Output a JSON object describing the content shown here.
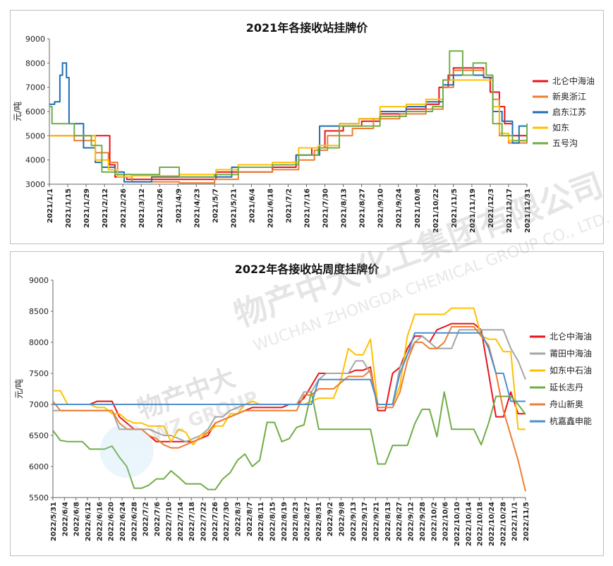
{
  "watermark": {
    "brand": "物产中大化工集团有限公司",
    "sub": "WUCHAN ZHONGDA CHEMICAL GROUP CO., LTD.",
    "logo_cn": "物产中大",
    "logo_en": "WZ GROUP"
  },
  "chart_data": [
    {
      "type": "line",
      "title": "2021年各接收站挂牌价",
      "ylabel": "元/吨",
      "ylim": [
        3000,
        9000
      ],
      "yticks": [
        3000,
        4000,
        5000,
        6000,
        7000,
        8000,
        9000
      ],
      "x_start": "2021/1/1",
      "x_end": "2021/12/31",
      "xticks": [
        "2021/1/1",
        "2021/1/15",
        "2021/1/29",
        "2021/2/12",
        "2021/2/26",
        "2021/3/12",
        "2021/3/26",
        "2021/4/9",
        "2021/4/23",
        "2021/5/7",
        "2021/5/21",
        "2021/6/4",
        "2021/6/18",
        "2021/7/2",
        "2021/7/16",
        "2021/7/30",
        "2021/8/13",
        "2021/8/27",
        "2021/9/10",
        "2021/9/24",
        "2021/10/8",
        "2021/10/22",
        "2021/11/5",
        "2021/11/19",
        "2021/12/3",
        "2021/12/17",
        "2021/12/31"
      ],
      "legend_position": "right",
      "series": [
        {
          "name": "北仑中海油",
          "color": "#e8131a",
          "x": [
            "2021/1/1",
            "2021/1/14",
            "2021/1/24",
            "2021/2/12",
            "2021/2/16",
            "2021/2/20",
            "2021/3/1",
            "2021/3/20",
            "2021/4/20",
            "2021/5/5",
            "2021/5/8",
            "2021/5/24",
            "2021/6/20",
            "2021/7/8",
            "2021/7/20",
            "2021/7/30",
            "2021/8/13",
            "2021/8/27",
            "2021/9/10",
            "2021/9/30",
            "2021/10/15",
            "2021/10/25",
            "2021/11/1",
            "2021/11/5",
            "2021/11/25",
            "2021/11/28",
            "2021/12/3",
            "2021/12/10",
            "2021/12/14",
            "2021/12/20",
            "2021/12/31"
          ],
          "y": [
            5000,
            5000,
            5000,
            5000,
            3800,
            3300,
            3200,
            3200,
            3200,
            3200,
            3500,
            3500,
            3700,
            4200,
            4500,
            5200,
            5400,
            5600,
            5900,
            6100,
            6300,
            7000,
            7500,
            7800,
            7800,
            7400,
            6800,
            6200,
            5500,
            5000,
            5500
          ]
        },
        {
          "name": "新奥浙江",
          "color": "#ee7d31",
          "x": [
            "2021/1/1",
            "2021/1/10",
            "2021/1/20",
            "2021/2/5",
            "2021/2/15",
            "2021/2/22",
            "2021/3/5",
            "2021/4/10",
            "2021/5/7",
            "2021/5/25",
            "2021/6/20",
            "2021/7/10",
            "2021/7/22",
            "2021/8/1",
            "2021/8/20",
            "2021/9/5",
            "2021/9/25",
            "2021/10/15",
            "2021/10/28",
            "2021/11/5",
            "2021/11/20",
            "2021/11/28",
            "2021/12/5",
            "2021/12/10",
            "2021/12/17",
            "2021/12/31"
          ],
          "y": [
            5000,
            5000,
            4800,
            4300,
            3900,
            3400,
            3100,
            3050,
            3200,
            3500,
            3600,
            4000,
            4400,
            5000,
            5300,
            5700,
            5900,
            6100,
            7000,
            7700,
            7700,
            7400,
            6500,
            5000,
            4700,
            5300
          ]
        },
        {
          "name": "启东江苏",
          "color": "#1f6db5",
          "x": [
            "2021/1/1",
            "2021/1/5",
            "2021/1/9",
            "2021/1/11",
            "2021/1/13",
            "2021/1/14",
            "2021/1/16",
            "2021/1/27",
            "2021/2/5",
            "2021/2/10",
            "2021/2/20",
            "2021/2/27",
            "2021/3/20",
            "2021/4/20",
            "2021/5/8",
            "2021/5/20",
            "2021/6/20",
            "2021/7/8",
            "2021/7/26",
            "2021/8/10",
            "2021/8/25",
            "2021/9/10",
            "2021/9/30",
            "2021/10/15",
            "2021/10/28",
            "2021/11/5",
            "2021/11/20",
            "2021/11/28",
            "2021/12/5",
            "2021/12/12",
            "2021/12/20",
            "2021/12/25",
            "2021/12/31"
          ],
          "y": [
            6300,
            6400,
            7500,
            8000,
            8000,
            7400,
            5500,
            4500,
            3900,
            3700,
            3500,
            3100,
            3300,
            3300,
            3300,
            3700,
            3800,
            4200,
            5400,
            5500,
            5700,
            6000,
            6200,
            6400,
            7100,
            7500,
            7500,
            7400,
            6000,
            5600,
            4700,
            5400,
            5400
          ]
        },
        {
          "name": "如东",
          "color": "#ffc000",
          "x": [
            "2021/1/1",
            "2021/1/25",
            "2021/2/5",
            "2021/2/15",
            "2021/2/22",
            "2021/3/5",
            "2021/4/10",
            "2021/5/8",
            "2021/5/25",
            "2021/6/20",
            "2021/7/10",
            "2021/7/25",
            "2021/8/10",
            "2021/8/25",
            "2021/9/10",
            "2021/9/30",
            "2021/10/15",
            "2021/10/28",
            "2021/11/8",
            "2021/11/20",
            "2021/11/28",
            "2021/12/5",
            "2021/12/10",
            "2021/12/17",
            "2021/12/31"
          ],
          "y": [
            5000,
            5000,
            4000,
            3600,
            3300,
            3350,
            3400,
            3600,
            3800,
            3900,
            4500,
            4600,
            5500,
            5700,
            6200,
            6300,
            6500,
            7300,
            7300,
            7300,
            7300,
            6200,
            5100,
            4800,
            5500
          ]
        },
        {
          "name": "五号沟",
          "color": "#70ad47",
          "x": [
            "2021/1/1",
            "2021/1/3",
            "2021/1/14",
            "2021/1/20",
            "2021/2/2",
            "2021/2/10",
            "2021/2/20",
            "2021/3/5",
            "2021/3/26",
            "2021/4/10",
            "2021/5/7",
            "2021/5/25",
            "2021/6/20",
            "2021/7/10",
            "2021/7/25",
            "2021/8/10",
            "2021/8/25",
            "2021/9/10",
            "2021/9/30",
            "2021/10/20",
            "2021/10/28",
            "2021/11/2",
            "2021/11/7",
            "2021/11/12",
            "2021/11/20",
            "2021/11/30",
            "2021/12/5",
            "2021/12/12",
            "2021/12/20",
            "2021/12/31"
          ],
          "y": [
            6200,
            5500,
            5500,
            5000,
            4600,
            3500,
            3400,
            3400,
            3700,
            3300,
            3400,
            3700,
            3800,
            4200,
            4500,
            5400,
            5400,
            5800,
            6000,
            6200,
            7300,
            8500,
            8500,
            7500,
            8000,
            7500,
            5500,
            5000,
            4800,
            5500
          ]
        }
      ]
    },
    {
      "type": "line",
      "title": "2022年各接收站周度挂牌价",
      "ylabel": "元/吨",
      "ylim": [
        5500,
        9000
      ],
      "yticks": [
        5500,
        6000,
        6500,
        7000,
        7500,
        8000,
        8500,
        9000
      ],
      "x_start": "2022/5/31",
      "x_end": "2022/11/6",
      "xticks": [
        "2022/5/31",
        "2022/6/4",
        "2022/6/8",
        "2022/6/12",
        "2022/6/16",
        "2022/6/20",
        "2022/6/24",
        "2022/6/28",
        "2022/7/2",
        "2022/7/6",
        "2022/7/10",
        "2022/7/14",
        "2022/7/18",
        "2022/7/22",
        "2022/7/26",
        "2022/7/30",
        "2022/8/3",
        "2022/8/7",
        "2022/8/11",
        "2022/8/15",
        "2022/8/19",
        "2022/8/23",
        "2022/8/27",
        "2022/8/31",
        "2022/9/2",
        "2022/9/8",
        "2022/9/13",
        "2022/9/17",
        "2022/9/21",
        "2022/8/13",
        "2022/8/27",
        "2022/9/12",
        "2022/9/28",
        "2022/10/2",
        "2022/10/6",
        "2022/10/10",
        "2022/10/14",
        "2022/10/18",
        "2022/10/24",
        "2022/10/28",
        "2022/11/1",
        "2022/11/5"
      ],
      "legend_position": "right",
      "series": [
        {
          "name": "北仑中海油",
          "color": "#e8131a",
          "y": [
            7000,
            7000,
            7000,
            7000,
            7000,
            7000,
            7050,
            7050,
            7050,
            6800,
            6700,
            6600,
            6600,
            6500,
            6400,
            6400,
            6400,
            6400,
            6400,
            6400,
            6450,
            6500,
            6700,
            6750,
            6800,
            6850,
            6900,
            6950,
            6950,
            6950,
            6950,
            6950,
            7000,
            7000,
            7100,
            7300,
            7500,
            7500,
            7500,
            7500,
            7500,
            7550,
            7550,
            7600,
            6900,
            6900,
            7500,
            7600,
            7900,
            8100,
            8100,
            8000,
            8200,
            8250,
            8300,
            8300,
            8300,
            8300,
            8200,
            7500,
            6800,
            6800,
            7200,
            6850,
            6850
          ]
        },
        {
          "name": "莆田中海油",
          "color": "#a5a5a5",
          "y": [
            6900,
            6900,
            6900,
            6900,
            6900,
            6900,
            6900,
            6900,
            6900,
            6600,
            6600,
            6600,
            6600,
            6600,
            6550,
            6500,
            6500,
            6450,
            6400,
            6450,
            6500,
            6600,
            6800,
            6800,
            6900,
            6950,
            7000,
            7000,
            7000,
            7000,
            7000,
            7000,
            7000,
            7000,
            7200,
            7200,
            7400,
            7500,
            7500,
            7500,
            7500,
            7700,
            7700,
            7500,
            7000,
            7000,
            7000,
            7600,
            7800,
            8000,
            8100,
            8000,
            7900,
            7900,
            7900,
            8200,
            8200,
            8200,
            8200,
            8200,
            8200,
            8200,
            7900,
            7700,
            7400
          ]
        },
        {
          "name": "如东中石油",
          "color": "#ffc000",
          "y": [
            7220,
            7220,
            7000,
            7000,
            7000,
            7000,
            6950,
            6950,
            6850,
            6850,
            6750,
            6700,
            6700,
            6650,
            6650,
            6650,
            6400,
            6600,
            6550,
            6350,
            6500,
            6550,
            6650,
            6650,
            6850,
            6850,
            7000,
            7050,
            7000,
            7000,
            7000,
            7000,
            7000,
            7000,
            7000,
            7050,
            7100,
            7100,
            7100,
            7400,
            7900,
            7800,
            7800,
            8050,
            7000,
            7000,
            7000,
            7300,
            8100,
            8450,
            8450,
            8450,
            8450,
            8450,
            8550,
            8550,
            8550,
            8550,
            8100,
            8050,
            8050,
            7850,
            7850,
            6600,
            6600
          ]
        },
        {
          "name": "延长志丹",
          "color": "#70ad47",
          "y": [
            6580,
            6420,
            6400,
            6400,
            6400,
            6280,
            6280,
            6280,
            6330,
            6150,
            6000,
            5650,
            5650,
            5700,
            5800,
            5800,
            5930,
            5830,
            5720,
            5720,
            5720,
            5630,
            5630,
            5800,
            5900,
            6100,
            6200,
            6000,
            6100,
            6710,
            6710,
            6400,
            6450,
            6630,
            6670,
            7200,
            6600,
            6600,
            6600,
            6600,
            6600,
            6600,
            6600,
            6600,
            6040,
            6040,
            6340,
            6340,
            6340,
            6690,
            6920,
            6920,
            6480,
            7200,
            6600,
            6600,
            6600,
            6600,
            6350,
            6700,
            7130,
            7130,
            7130,
            7000,
            6840
          ]
        },
        {
          "name": "舟山新奥",
          "color": "#ee7d31",
          "y": [
            7050,
            6900,
            6900,
            6900,
            6900,
            6900,
            6900,
            6900,
            6900,
            6700,
            6600,
            6600,
            6600,
            6500,
            6450,
            6350,
            6300,
            6300,
            6350,
            6400,
            6450,
            6550,
            6700,
            6750,
            6800,
            6850,
            6900,
            6900,
            6900,
            6900,
            6900,
            6900,
            6900,
            6900,
            7150,
            7150,
            7250,
            7250,
            7250,
            7350,
            7450,
            7450,
            7450,
            7550,
            6950,
            6950,
            6950,
            7200,
            7700,
            8000,
            8000,
            7900,
            7900,
            8000,
            8250,
            8250,
            8250,
            8250,
            8100,
            7950,
            7500,
            6900,
            6500,
            6100,
            5600
          ]
        },
        {
          "name": "杭嘉鑫申能",
          "color": "#4a8fcf",
          "y": [
            7000,
            7000,
            7000,
            7000,
            7000,
            7000,
            7000,
            7000,
            7000,
            7000,
            7000,
            7000,
            7000,
            7000,
            7000,
            7000,
            7000,
            7000,
            7000,
            7000,
            7000,
            7000,
            7000,
            7000,
            7000,
            7000,
            7000,
            7000,
            7000,
            7000,
            7000,
            7000,
            7000,
            7000,
            7000,
            7000,
            7400,
            7400,
            7400,
            7400,
            7400,
            7400,
            7400,
            7400,
            7000,
            7000,
            7000,
            7500,
            7800,
            8150,
            8150,
            8150,
            8150,
            8150,
            8150,
            8150,
            8150,
            8150,
            8150,
            7900,
            7500,
            7500,
            7050,
            7050,
            7050
          ]
        }
      ]
    }
  ]
}
